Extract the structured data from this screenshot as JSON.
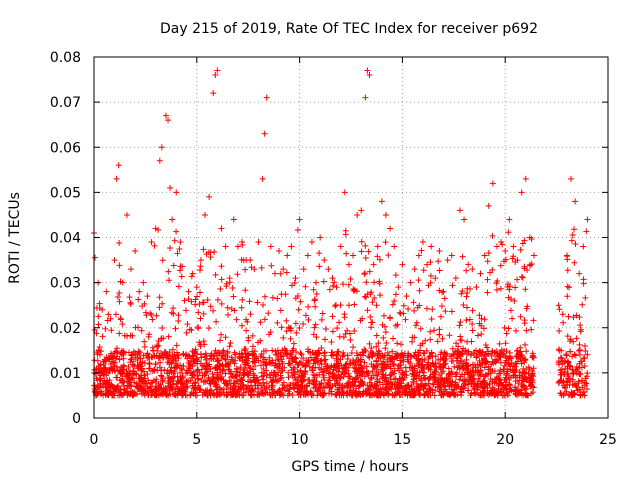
{
  "chart_data": {
    "type": "scatter",
    "title": "Day 215 of 2019, Rate Of TEC Index for receiver p692",
    "xlabel": "GPS time / hours",
    "ylabel": "ROTI / TECUs",
    "xlim": [
      0,
      25
    ],
    "ylim": [
      0,
      0.08
    ],
    "x_ticks": [
      0,
      5,
      10,
      15,
      20,
      25
    ],
    "x_tick_labels": [
      "0",
      "5",
      "10",
      "15",
      "20",
      "25"
    ],
    "y_ticks": [
      0,
      0.01,
      0.02,
      0.03,
      0.04,
      0.05,
      0.06,
      0.07,
      0.08
    ],
    "y_tick_labels": [
      "0",
      "0.01",
      "0.02",
      "0.03",
      "0.04",
      "0.05",
      "0.06",
      "0.07",
      "0.08"
    ],
    "grid": true,
    "marker": "plus",
    "marker_color": "#ff0000",
    "series": [
      {
        "name": "p692",
        "x": [
          0.0,
          0.2,
          0.4,
          0.6,
          0.8,
          1.0,
          1.1,
          1.2,
          1.4,
          1.6,
          1.8,
          2.0,
          2.2,
          2.4,
          2.6,
          2.8,
          3.0,
          3.2,
          3.3,
          3.5,
          3.6,
          3.7,
          3.8,
          4.0,
          4.2,
          4.4,
          4.6,
          4.8,
          5.0,
          5.2,
          5.4,
          5.6,
          5.8,
          5.9,
          6.0,
          6.2,
          6.4,
          6.6,
          6.8,
          7.0,
          7.2,
          7.4,
          7.6,
          7.8,
          8.0,
          8.2,
          8.3,
          8.4,
          8.6,
          8.8,
          9.0,
          9.2,
          9.4,
          9.6,
          9.8,
          10.0,
          10.2,
          10.4,
          10.6,
          10.8,
          11.0,
          11.2,
          11.4,
          11.6,
          11.8,
          12.0,
          12.2,
          12.4,
          12.6,
          12.8,
          13.0,
          13.2,
          13.3,
          13.4,
          13.6,
          13.8,
          14.0,
          14.2,
          14.4,
          14.6,
          14.8,
          15.0,
          15.2,
          15.4,
          15.6,
          15.8,
          16.0,
          16.2,
          16.4,
          16.6,
          16.8,
          17.0,
          17.2,
          17.4,
          17.6,
          17.8,
          18.0,
          18.2,
          18.4,
          18.6,
          18.8,
          19.0,
          19.2,
          19.4,
          19.6,
          19.8,
          20.0,
          20.2,
          20.4,
          20.6,
          20.8,
          21.0,
          21.2,
          21.4,
          22.6,
          22.8,
          23.0,
          23.2,
          23.4,
          23.6,
          23.8,
          24.0
        ],
        "y": [
          0.041,
          0.03,
          0.024,
          0.028,
          0.022,
          0.035,
          0.053,
          0.056,
          0.03,
          0.045,
          0.033,
          0.037,
          0.028,
          0.03,
          0.027,
          0.039,
          0.042,
          0.057,
          0.06,
          0.067,
          0.066,
          0.051,
          0.044,
          0.05,
          0.039,
          0.026,
          0.028,
          0.032,
          0.029,
          0.035,
          0.045,
          0.049,
          0.072,
          0.076,
          0.077,
          0.042,
          0.038,
          0.031,
          0.044,
          0.038,
          0.039,
          0.035,
          0.035,
          0.033,
          0.039,
          0.053,
          0.063,
          0.071,
          0.038,
          0.032,
          0.037,
          0.033,
          0.036,
          0.038,
          0.031,
          0.044,
          0.033,
          0.036,
          0.039,
          0.03,
          0.04,
          0.035,
          0.033,
          0.031,
          0.029,
          0.038,
          0.05,
          0.034,
          0.036,
          0.045,
          0.046,
          0.071,
          0.077,
          0.076,
          0.034,
          0.038,
          0.048,
          0.045,
          0.042,
          0.038,
          0.029,
          0.034,
          0.027,
          0.03,
          0.033,
          0.036,
          0.039,
          0.034,
          0.038,
          0.031,
          0.037,
          0.028,
          0.035,
          0.036,
          0.031,
          0.046,
          0.044,
          0.034,
          0.033,
          0.029,
          0.032,
          0.036,
          0.047,
          0.052,
          0.038,
          0.039,
          0.037,
          0.044,
          0.038,
          0.035,
          0.05,
          0.053,
          0.04,
          0.036,
          0.025,
          0.023,
          0.036,
          0.053,
          0.048,
          0.032,
          0.038,
          0.044
        ]
      }
    ],
    "gaps_hours": [
      [
        21.4,
        22.6
      ]
    ]
  }
}
